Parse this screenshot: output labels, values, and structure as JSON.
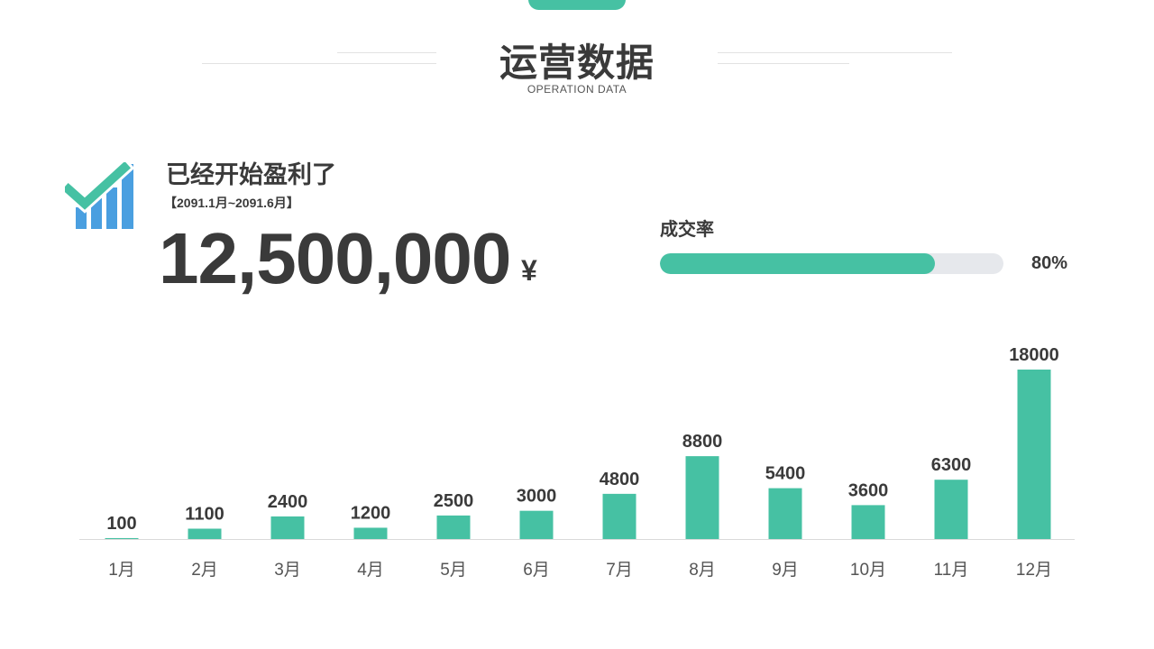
{
  "header": {
    "title": "运营数据",
    "subtitle": "OPERATION DATA"
  },
  "summary": {
    "heading": "已经开始盈利了",
    "period": "【2091.1月~2091.6月】",
    "amount": "12,500,000",
    "currency": "¥",
    "icon": "chart-check-icon"
  },
  "conversion": {
    "label": "成交率",
    "value_text": "80%",
    "value": 0.8
  },
  "colors": {
    "accent": "#46c1a3",
    "icon_blue": "#4a9fe0",
    "text": "#3a3a3a",
    "track": "#e6e8ec"
  },
  "chart_data": {
    "type": "bar",
    "categories": [
      "1月",
      "2月",
      "3月",
      "4月",
      "5月",
      "6月",
      "7月",
      "8月",
      "9月",
      "10月",
      "11月",
      "12月"
    ],
    "values": [
      100,
      1100,
      2400,
      1200,
      2500,
      3000,
      4800,
      8800,
      5400,
      3600,
      6300,
      18000
    ],
    "data_labels": true,
    "grid": false,
    "ylim": [
      0,
      18000
    ]
  }
}
